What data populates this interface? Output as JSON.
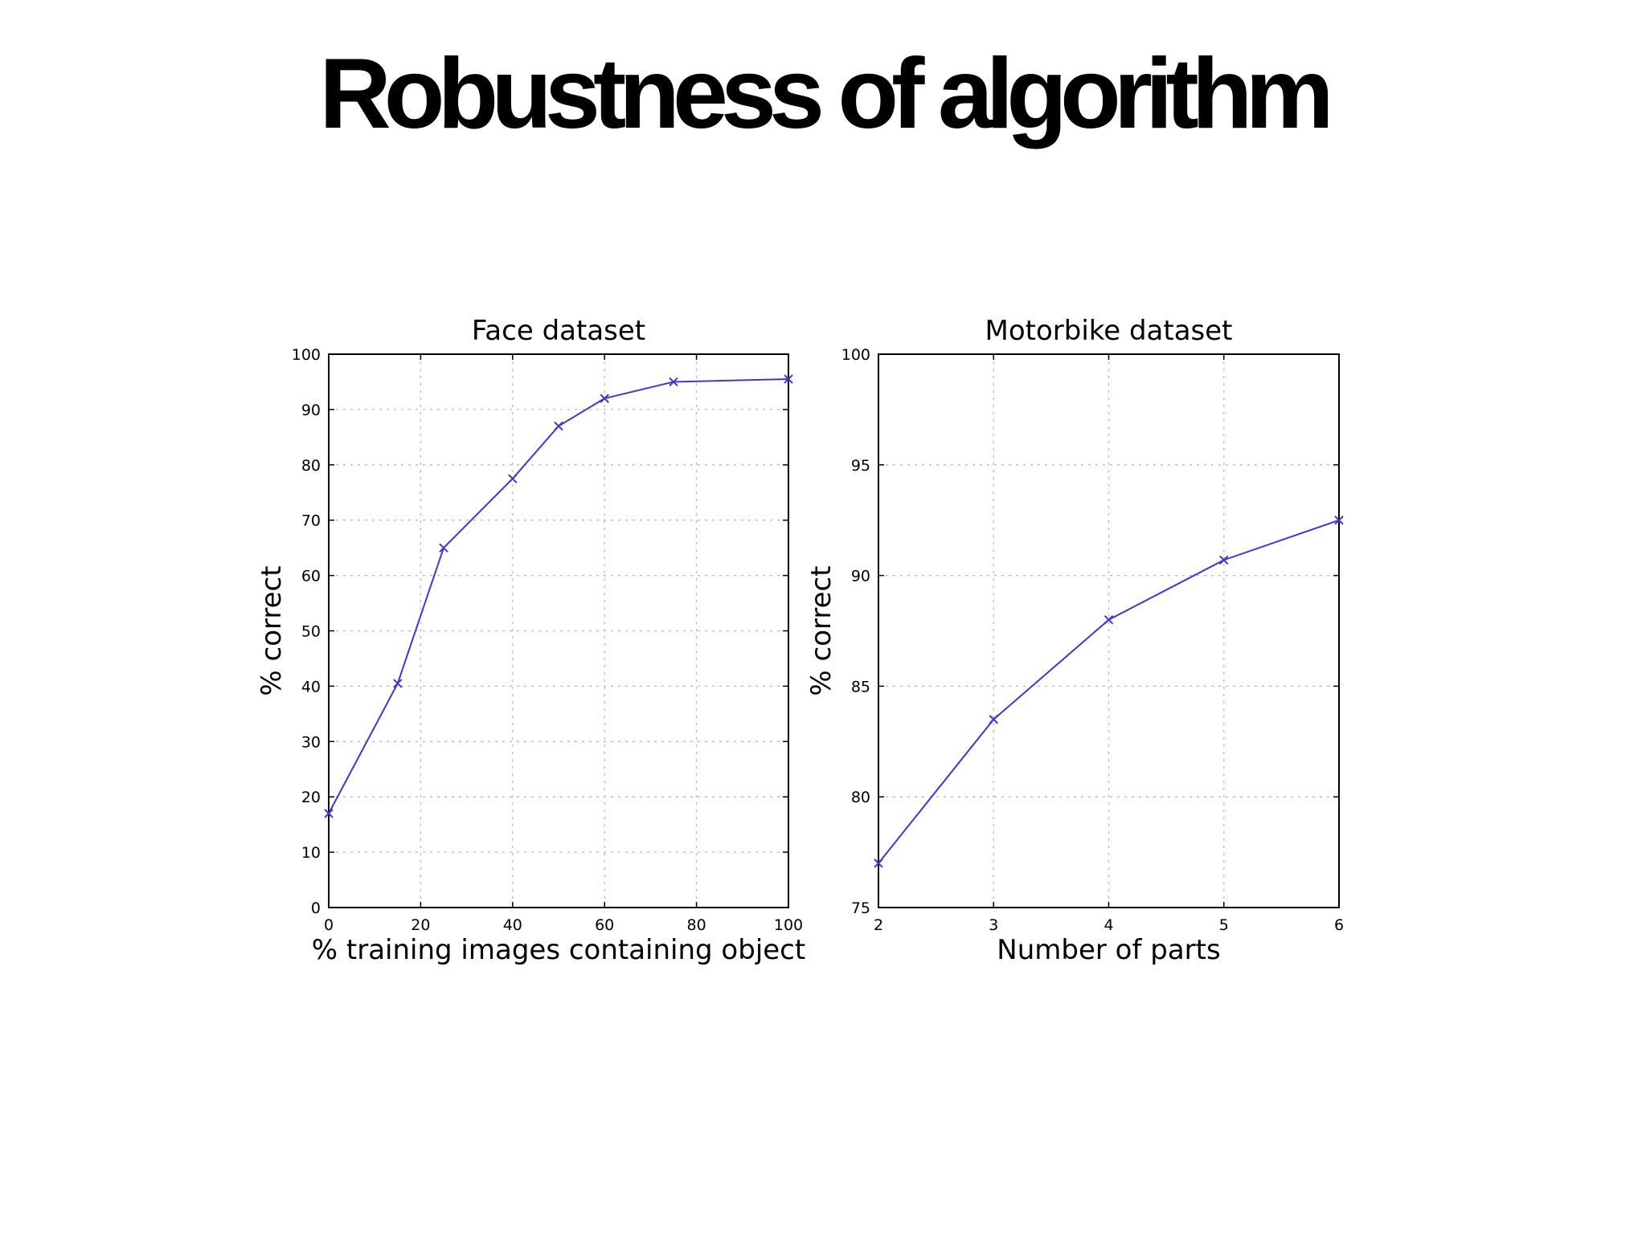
{
  "slide": {
    "title": "Robustness of algorithm"
  },
  "colors": {
    "series": "#3a3ad0",
    "grid": "#b8b8b8",
    "axis": "#000000"
  },
  "chart_data": [
    {
      "type": "line",
      "title": "Face dataset",
      "xlabel": "% training images containing object",
      "ylabel": "% correct",
      "xlim": [
        0,
        100
      ],
      "ylim": [
        0,
        100
      ],
      "xticks": [
        0,
        20,
        40,
        60,
        80,
        100
      ],
      "yticks": [
        0,
        10,
        20,
        30,
        40,
        50,
        60,
        70,
        80,
        90,
        100
      ],
      "grid": true,
      "marker": "x",
      "series": [
        {
          "x": [
            0,
            15,
            25,
            40,
            50,
            60,
            75,
            100
          ],
          "y": [
            17,
            40.5,
            65,
            77.5,
            87,
            92,
            95,
            95.5
          ]
        }
      ]
    },
    {
      "type": "line",
      "title": "Motorbike dataset",
      "xlabel": "Number of parts",
      "ylabel": "% correct",
      "xlim": [
        2,
        6
      ],
      "ylim": [
        75,
        100
      ],
      "xticks": [
        2,
        3,
        4,
        5,
        6
      ],
      "yticks": [
        75,
        80,
        85,
        90,
        95,
        100
      ],
      "grid": true,
      "marker": "x",
      "series": [
        {
          "x": [
            2,
            3,
            4,
            5,
            6
          ],
          "y": [
            77,
            83.5,
            88,
            90.7,
            92.5
          ]
        }
      ]
    }
  ]
}
